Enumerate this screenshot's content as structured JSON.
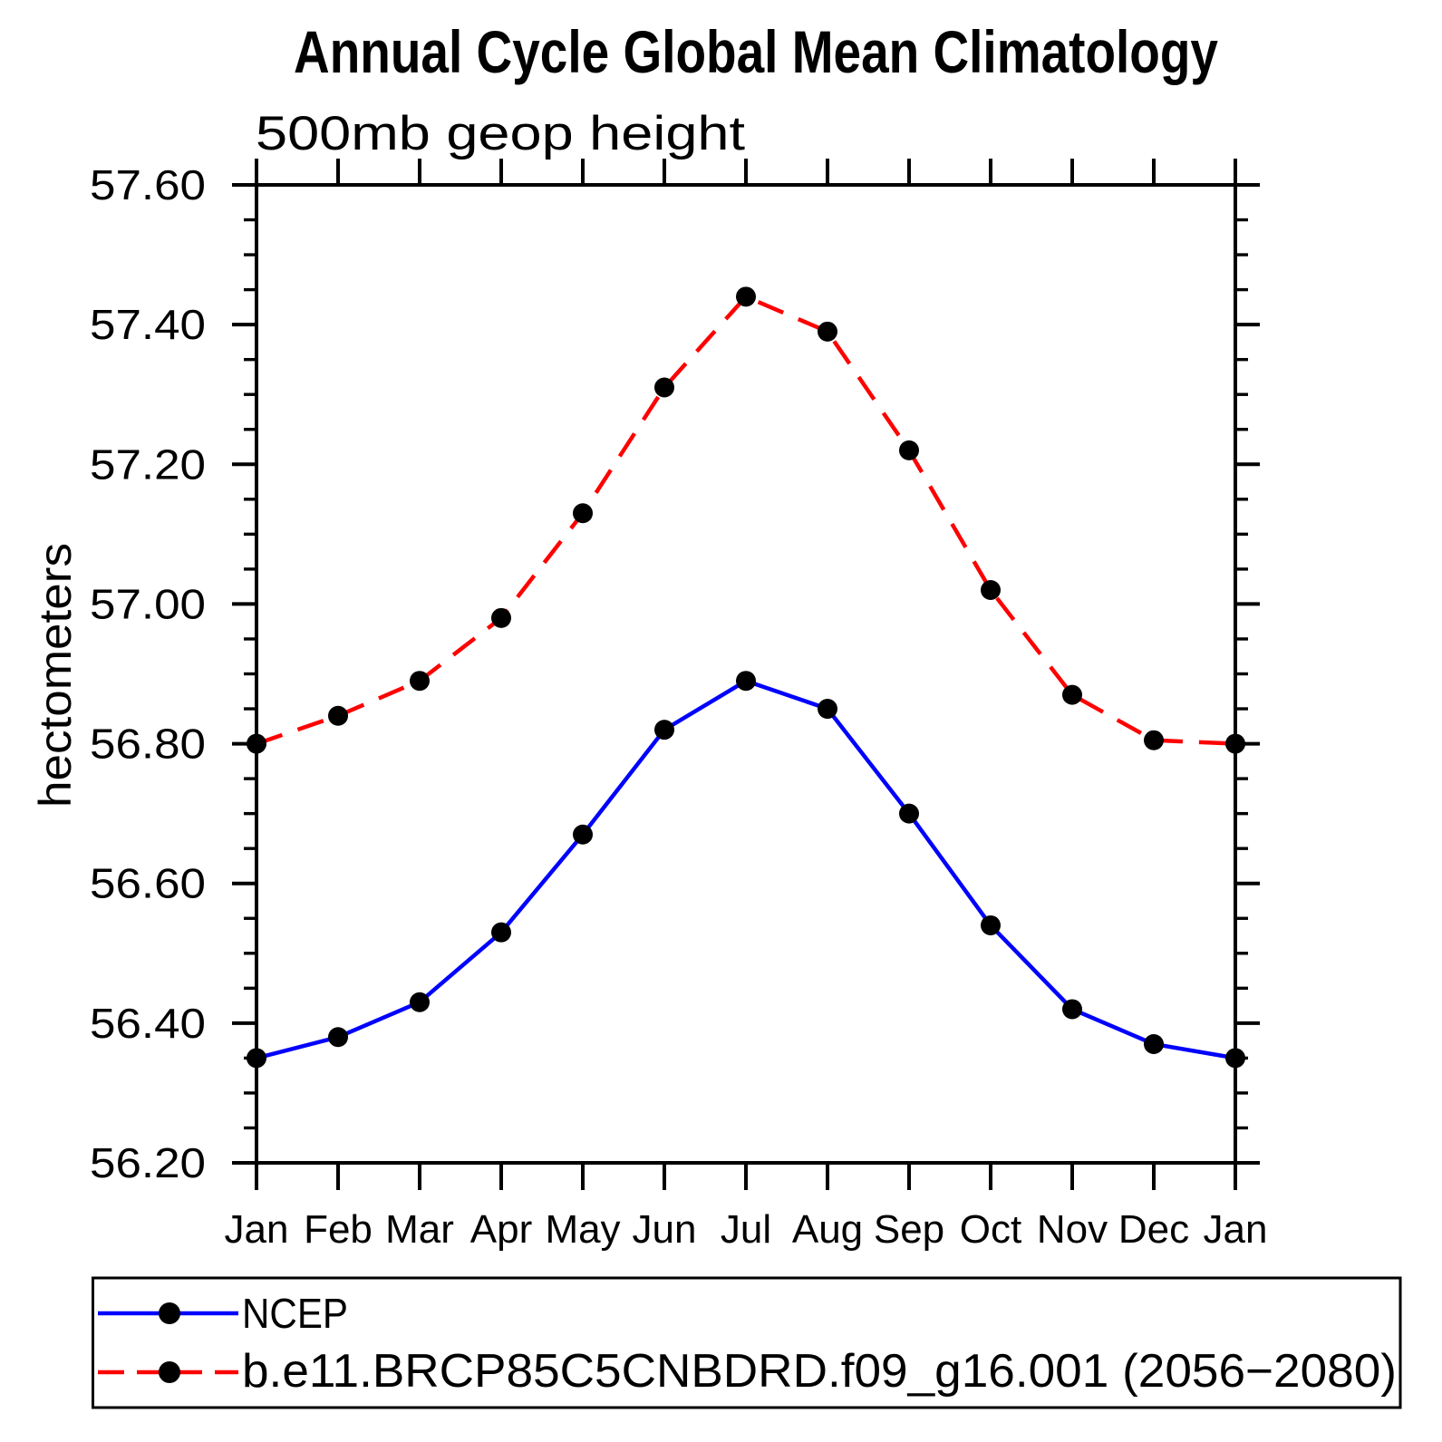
{
  "header": {
    "title": "Annual Cycle Global Mean Climatology",
    "subtitle": "500mb geop height"
  },
  "y_axis": {
    "label": "hectometers",
    "tick_labels": [
      "57.60",
      "57.40",
      "57.20",
      "57.00",
      "56.80",
      "56.60",
      "56.40",
      "56.20"
    ]
  },
  "x_axis": {
    "tick_labels": [
      "Jan",
      "Feb",
      "Mar",
      "Apr",
      "May",
      "Jun",
      "Jul",
      "Aug",
      "Sep",
      "Oct",
      "Nov",
      "Dec",
      "Jan"
    ]
  },
  "legend": {
    "items": [
      {
        "label": "NCEP",
        "color": "#0000ff",
        "style": "solid",
        "marker": "filled-circle"
      },
      {
        "label": "b.e11.BRCP85C5CNBDRD.f09_g16.001 (2056−2080)",
        "color": "#ff0000",
        "style": "dashed",
        "marker": "filled-circle"
      }
    ]
  },
  "colors": {
    "ncep_line": "#0000ff",
    "model_line": "#ff0000",
    "marker": "#000000",
    "axis": "#000000",
    "background": "#ffffff"
  },
  "chart_data": {
    "type": "line",
    "title": "Annual Cycle Global Mean Climatology",
    "subtitle": "500mb geop height",
    "xlabel": "",
    "ylabel": "hectometers",
    "categories": [
      "Jan",
      "Feb",
      "Mar",
      "Apr",
      "May",
      "Jun",
      "Jul",
      "Aug",
      "Sep",
      "Oct",
      "Nov",
      "Dec",
      "Jan"
    ],
    "series": [
      {
        "key": "ncep",
        "name": "NCEP",
        "color": "#0000ff",
        "line_style": "solid",
        "marker": "circle",
        "marker_color": "#000000",
        "values": [
          56.35,
          56.38,
          56.43,
          56.53,
          56.67,
          56.82,
          56.89,
          56.85,
          56.7,
          56.54,
          56.42,
          56.37,
          56.35
        ]
      },
      {
        "key": "model",
        "name": "b.e11.BRCP85C5CNBDRD.f09_g16.001 (2056−2080)",
        "color": "#ff0000",
        "line_style": "dashed",
        "marker": "circle",
        "marker_color": "#000000",
        "values": [
          56.8,
          56.84,
          56.89,
          56.98,
          57.13,
          57.31,
          57.44,
          57.39,
          57.22,
          57.02,
          56.87,
          56.805,
          56.8
        ]
      }
    ],
    "ylim": [
      56.2,
      57.6
    ],
    "y_major_step": 0.2,
    "y_minor_step": 0.05,
    "grid": false,
    "legend_position": "bottom"
  }
}
